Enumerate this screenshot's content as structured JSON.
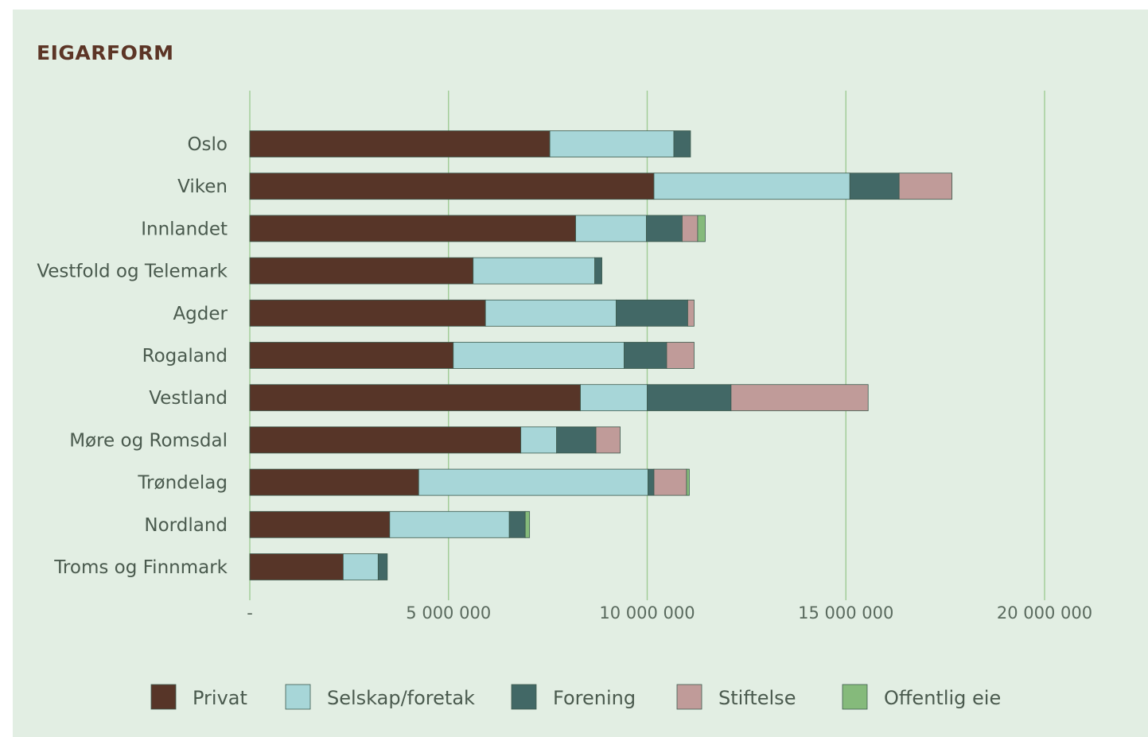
{
  "chart_data": {
    "type": "bar",
    "orientation": "horizontal",
    "stacked": true,
    "title": "EIGARFORM",
    "categories": [
      "Oslo",
      "Viken",
      "Innlandet",
      "Vestfold og Telemark",
      "Agder",
      "Rogaland",
      "Vestland",
      "Møre og Romsdal",
      "Trøndelag",
      "Nordland",
      "Troms og Finnmark"
    ],
    "series": [
      {
        "name": "Privat",
        "color": "#573528",
        "values": [
          7550000,
          10170000,
          8200000,
          5620000,
          5930000,
          5120000,
          8320000,
          6820000,
          4250000,
          3520000,
          2350000
        ]
      },
      {
        "name": "Selskap/foretak",
        "color": "#a7d6d8",
        "values": [
          3120000,
          4930000,
          1780000,
          3060000,
          3290000,
          4300000,
          1680000,
          900000,
          5770000,
          3010000,
          880000
        ]
      },
      {
        "name": "Forening",
        "color": "#426866",
        "values": [
          420000,
          1240000,
          900000,
          180000,
          1800000,
          1070000,
          2110000,
          990000,
          150000,
          400000,
          230000
        ]
      },
      {
        "name": "Stiftelse",
        "color": "#c09b99",
        "values": [
          0,
          1330000,
          390000,
          0,
          160000,
          690000,
          3450000,
          610000,
          820000,
          0,
          0
        ]
      },
      {
        "name": "Offentlig eie",
        "color": "#85ba7b",
        "values": [
          0,
          0,
          190000,
          0,
          0,
          0,
          0,
          0,
          70000,
          110000,
          0
        ]
      }
    ],
    "xlim": [
      0,
      20000000
    ],
    "xticks": [
      0,
      5000000,
      10000000,
      15000000,
      20000000
    ],
    "xtick_labels": [
      "-",
      "5 000 000",
      "10 000 000",
      "15 000 000",
      "20 000 000"
    ],
    "grid": "vertical",
    "legend": "bottom"
  }
}
